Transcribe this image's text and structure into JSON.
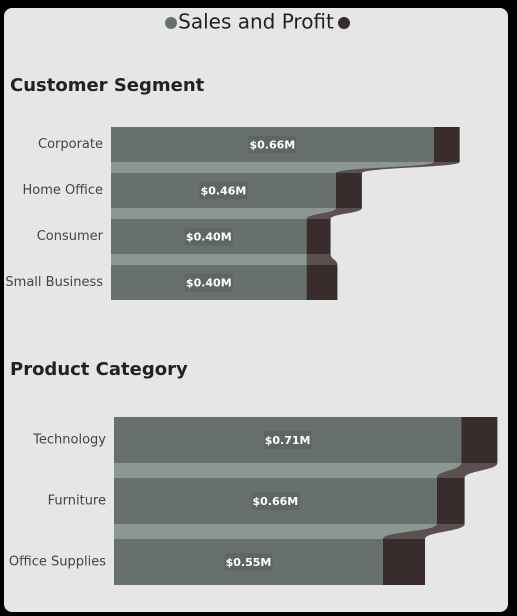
{
  "title": "Sales and Profit",
  "chart_data": [
    {
      "type": "funnel-bar",
      "title": "Customer Segment",
      "categories": [
        "Corporate",
        "Home Office",
        "Consumer",
        "Small Business"
      ],
      "series": [
        {
          "color": "#67706f",
          "values": [
            0.66,
            0.46,
            0.4,
            0.4
          ],
          "value_labels": [
            "$0.66M",
            "$0.46M",
            "$0.40M",
            "$0.40M"
          ]
        },
        {
          "color": "#382c2c",
          "values": [
            0.053,
            0.053,
            0.049,
            0.063
          ]
        }
      ]
    },
    {
      "type": "funnel-bar",
      "title": "Product Category",
      "categories": [
        "Technology",
        "Furniture",
        "Office Supplies"
      ],
      "series": [
        {
          "color": "#67706f",
          "values": [
            0.71,
            0.66,
            0.55
          ],
          "value_labels": [
            "$0.71M",
            "$0.66M",
            "$0.55M"
          ]
        },
        {
          "color": "#382c2c",
          "values": [
            0.074,
            0.057,
            0.086
          ]
        }
      ]
    }
  ]
}
